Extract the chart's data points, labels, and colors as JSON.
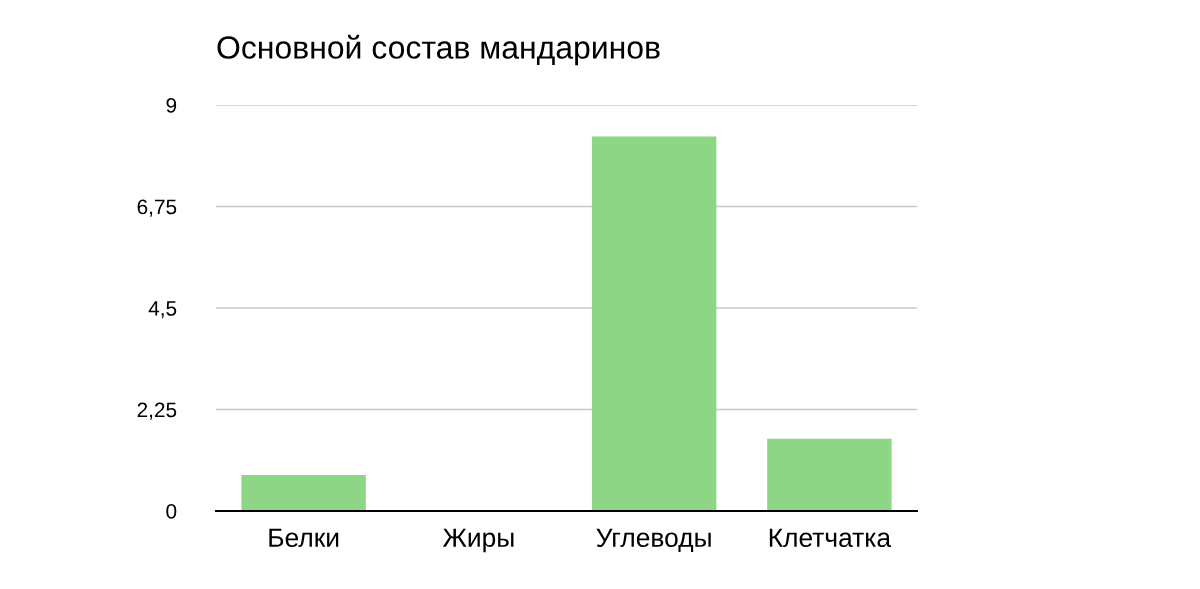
{
  "chart_data": {
    "type": "bar",
    "title": "Основной состав мандаринов",
    "categories": [
      "Белки",
      "Жиры",
      "Углеводы",
      "Клетчатка"
    ],
    "values": [
      0.8,
      0,
      8.3,
      1.6
    ],
    "color": "#8cd685",
    "ylim": [
      0,
      9
    ],
    "yticks": [
      0,
      {
        "value": 2.25,
        "label": "2,25"
      },
      {
        "value": 4.5,
        "label": "4,5"
      },
      {
        "value": 6.75,
        "label": "6,75"
      },
      9
    ],
    "grid": "y"
  }
}
